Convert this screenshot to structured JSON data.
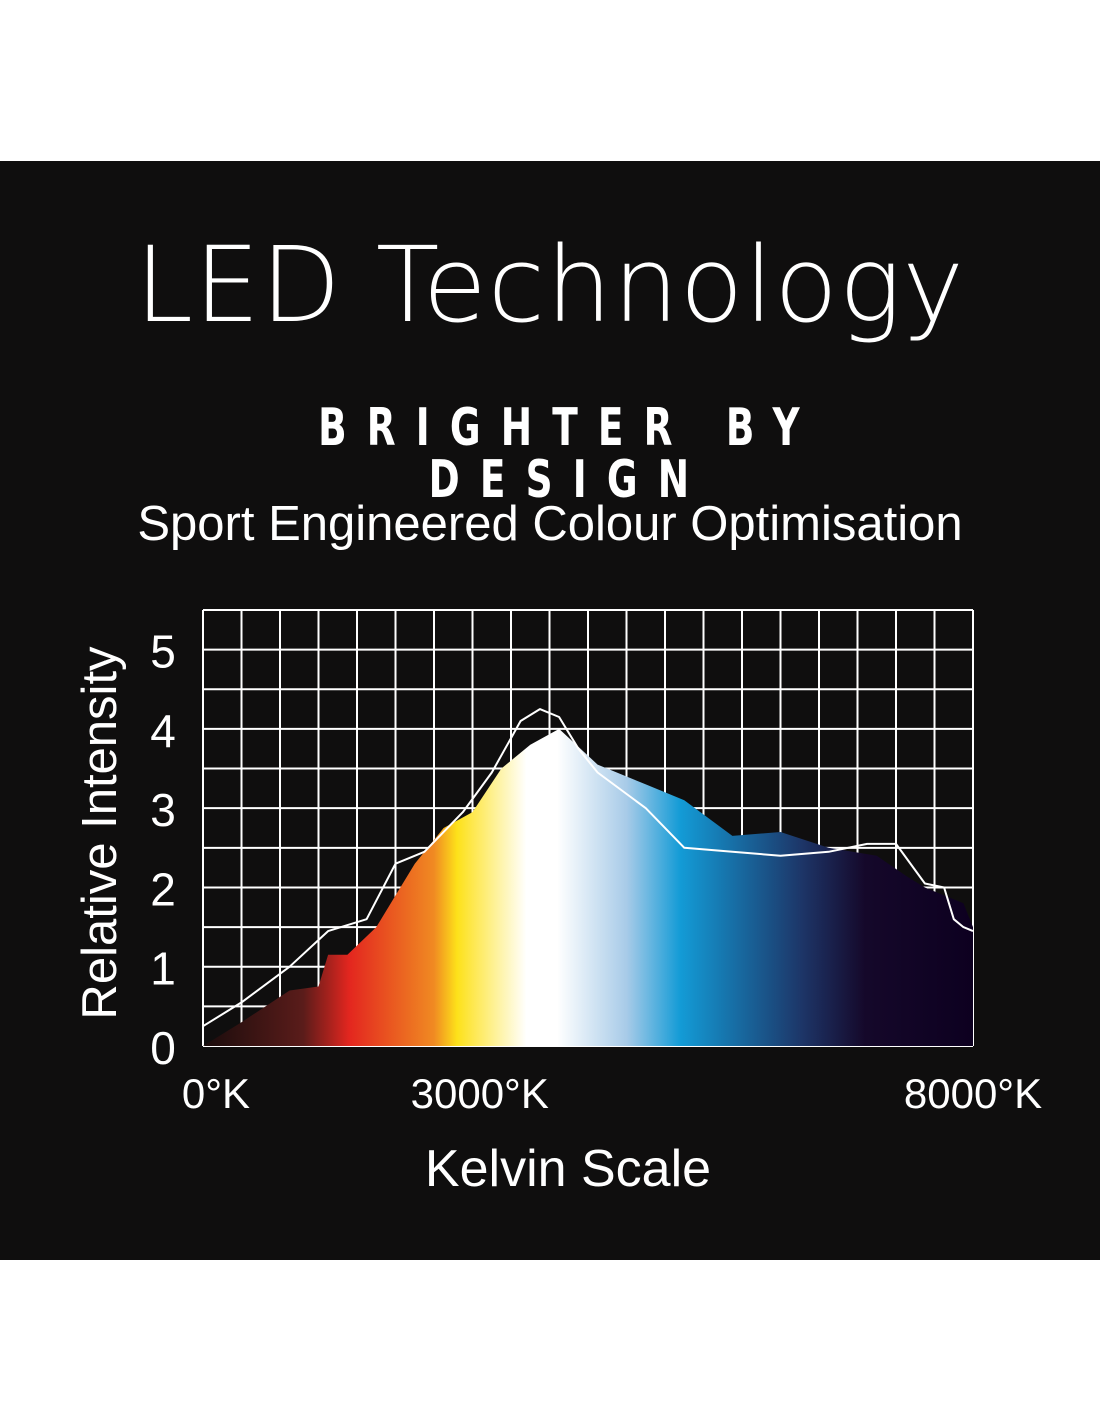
{
  "header": {
    "title": "LED Technology",
    "subtitle": "BRIGHTER BY DESIGN",
    "tagline": "Sport Engineered Colour Optimisation"
  },
  "colors": {
    "background": "#0f0e0e",
    "grid": "#ffffff",
    "text": "#ffffff",
    "spectrum_stops": [
      "#1a0c0c",
      "#5a1c1a",
      "#e3261f",
      "#f08a22",
      "#fde11a",
      "#ffffff",
      "#ffffff",
      "#a8cbe8",
      "#139bd6",
      "#1d3466",
      "#15082a",
      "#0d0020"
    ]
  },
  "chart_data": {
    "type": "area",
    "xlabel": "Kelvin Scale",
    "ylabel": "Relative Intensity",
    "x_tick_labels": [
      "0°K",
      "3000°K",
      "8000°K"
    ],
    "y_tick_labels": [
      "0",
      "1",
      "2",
      "3",
      "4",
      "5"
    ],
    "xlim": [
      0,
      8000
    ],
    "ylim": [
      0,
      5.5
    ],
    "grid": true,
    "series": [
      {
        "style": "filled-spectrum",
        "x": [
          0,
          400,
          900,
          1200,
          1300,
          1500,
          1800,
          2200,
          2500,
          2800,
          3100,
          3400,
          3700,
          4100,
          4600,
          5000,
          5500,
          6000,
          6500,
          7000,
          7300,
          7500,
          7700,
          7900,
          8000
        ],
        "y": [
          0,
          0.3,
          0.7,
          0.75,
          1.15,
          1.15,
          1.5,
          2.3,
          2.75,
          2.95,
          3.5,
          3.8,
          4.0,
          3.55,
          3.3,
          3.1,
          2.65,
          2.7,
          2.5,
          2.4,
          2.15,
          2.0,
          1.9,
          1.8,
          1.5
        ]
      },
      {
        "style": "white-line",
        "x": [
          0,
          400,
          900,
          1300,
          1700,
          2000,
          2300,
          2700,
          3000,
          3300,
          3500,
          3700,
          3900,
          4100,
          4600,
          5000,
          5500,
          6000,
          6500,
          6900,
          7200,
          7500,
          7700,
          7800,
          7900,
          8000
        ],
        "y": [
          0.25,
          0.55,
          1.0,
          1.45,
          1.6,
          2.3,
          2.45,
          2.95,
          3.45,
          4.1,
          4.25,
          4.15,
          3.75,
          3.45,
          3.0,
          2.5,
          2.45,
          2.4,
          2.45,
          2.55,
          2.55,
          2.05,
          2.0,
          1.6,
          1.5,
          1.45
        ]
      }
    ]
  }
}
